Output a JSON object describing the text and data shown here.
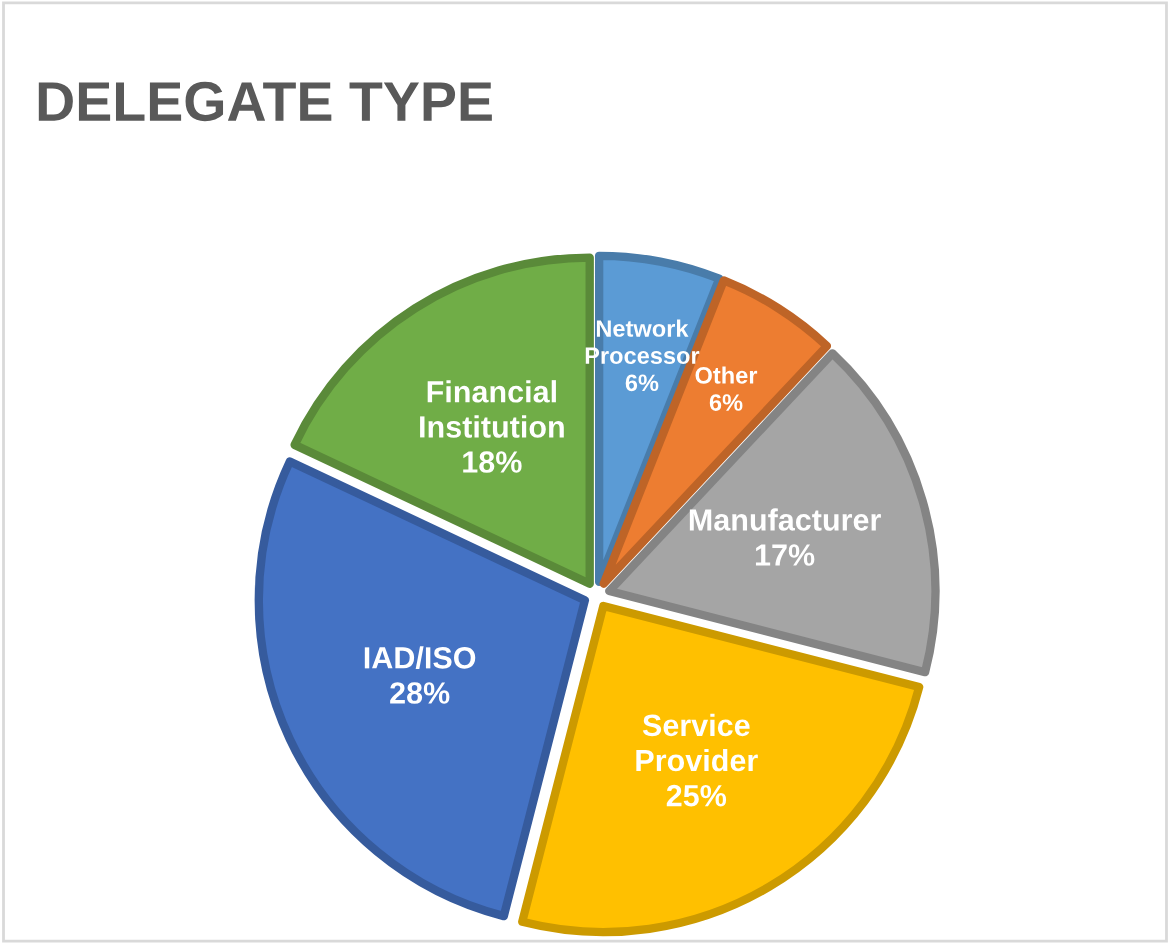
{
  "chart_data": {
    "type": "pie",
    "title": "DELEGATE TYPE",
    "categories": [
      "Network Processor",
      "Other",
      "Manufacturer",
      "Service Provider",
      "IAD/ISO",
      "Financial Institution"
    ],
    "values": [
      6,
      6,
      17,
      25,
      28,
      18
    ],
    "colors": [
      "#5b9bd5",
      "#ed7d31",
      "#a5a5a5",
      "#ffc000",
      "#4472c4",
      "#70ad47"
    ],
    "value_labels": [
      "6%",
      "6%",
      "17%",
      "25%",
      "28%",
      "18%"
    ],
    "legend": false
  }
}
